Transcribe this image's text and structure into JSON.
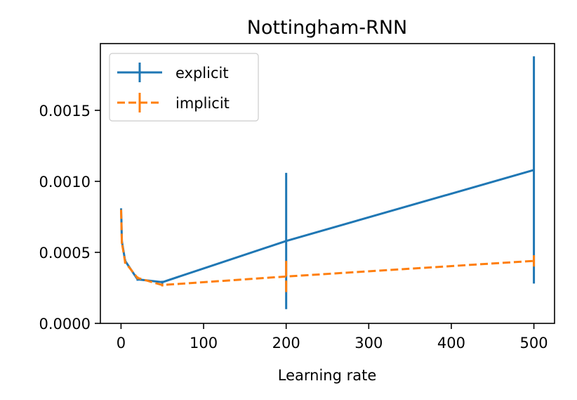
{
  "chart_data": {
    "type": "line",
    "title": "Nottingham-RNN",
    "xlabel": "Learning rate",
    "ylabel": "",
    "xlim": [
      -25,
      525
    ],
    "ylim": [
      0,
      0.00197
    ],
    "xticks": [
      0,
      100,
      200,
      300,
      400,
      500
    ],
    "xtick_labels": [
      "0",
      "100",
      "200",
      "300",
      "400",
      "500"
    ],
    "yticks": [
      0,
      0.0005,
      0.001,
      0.0015
    ],
    "ytick_labels": [
      "0.0000",
      "0.0005",
      "0.0010",
      "0.0015"
    ],
    "grid": false,
    "legend_position": "top-left",
    "series": [
      {
        "name": "explicit",
        "color": "#1f77b4",
        "line_style": "solid",
        "x": [
          0.1,
          0.5,
          1,
          5,
          20,
          50,
          200,
          500
        ],
        "y": [
          0.0008,
          0.00072,
          0.00058,
          0.00044,
          0.00031,
          0.00029,
          0.00058,
          0.00108
        ],
        "err": [
          1e-05,
          1e-05,
          1e-05,
          1e-05,
          1e-05,
          1e-05,
          0.00048,
          0.0008
        ]
      },
      {
        "name": "implicit",
        "color": "#ff7f0e",
        "line_style": "dashed",
        "x": [
          0.1,
          0.5,
          1,
          5,
          20,
          50,
          200,
          500
        ],
        "y": [
          0.00079,
          0.0007,
          0.00057,
          0.00043,
          0.00032,
          0.00027,
          0.00033,
          0.00044
        ],
        "err": [
          1e-05,
          1e-05,
          1e-05,
          1e-05,
          1e-05,
          1e-05,
          0.00011,
          4e-05
        ]
      }
    ]
  }
}
